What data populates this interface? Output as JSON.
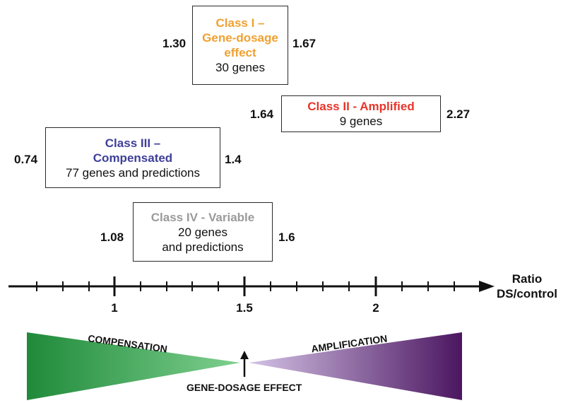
{
  "classes": [
    {
      "name_lines": [
        "Class I –",
        "Gene-dosage",
        "effect"
      ],
      "count": "30 genes",
      "lower": "1.30",
      "upper": "1.67",
      "color": "#f0a030"
    },
    {
      "name_lines": [
        "Class II - Amplified"
      ],
      "count": "9 genes",
      "lower": "1.64",
      "upper": "2.27",
      "color": "#e8352a"
    },
    {
      "name_lines": [
        "Class III –",
        "Compensated"
      ],
      "count": "77 genes and predictions",
      "lower": "0.74",
      "upper": "1.4",
      "color": "#3f3f99"
    },
    {
      "name_lines": [
        "Class IV - Variable"
      ],
      "count_lines": [
        "20 genes",
        "and predictions"
      ],
      "lower": "1.08",
      "upper": "1.6",
      "color": "#9a9a9a"
    }
  ],
  "axis": {
    "ticks": [
      "1",
      "1.5",
      "2"
    ],
    "label_lines": [
      "Ratio",
      "DS/control"
    ]
  },
  "wedges": {
    "left_label": "COMPENSATION",
    "right_label": "AMPLIFICATION",
    "center_label": "GENE-DOSAGE EFFECT",
    "left_color_dark": "#1f8a3a",
    "left_color_light": "#7fd08f",
    "right_color_light": "#c9b3e0",
    "right_color_dark": "#4b1660"
  }
}
